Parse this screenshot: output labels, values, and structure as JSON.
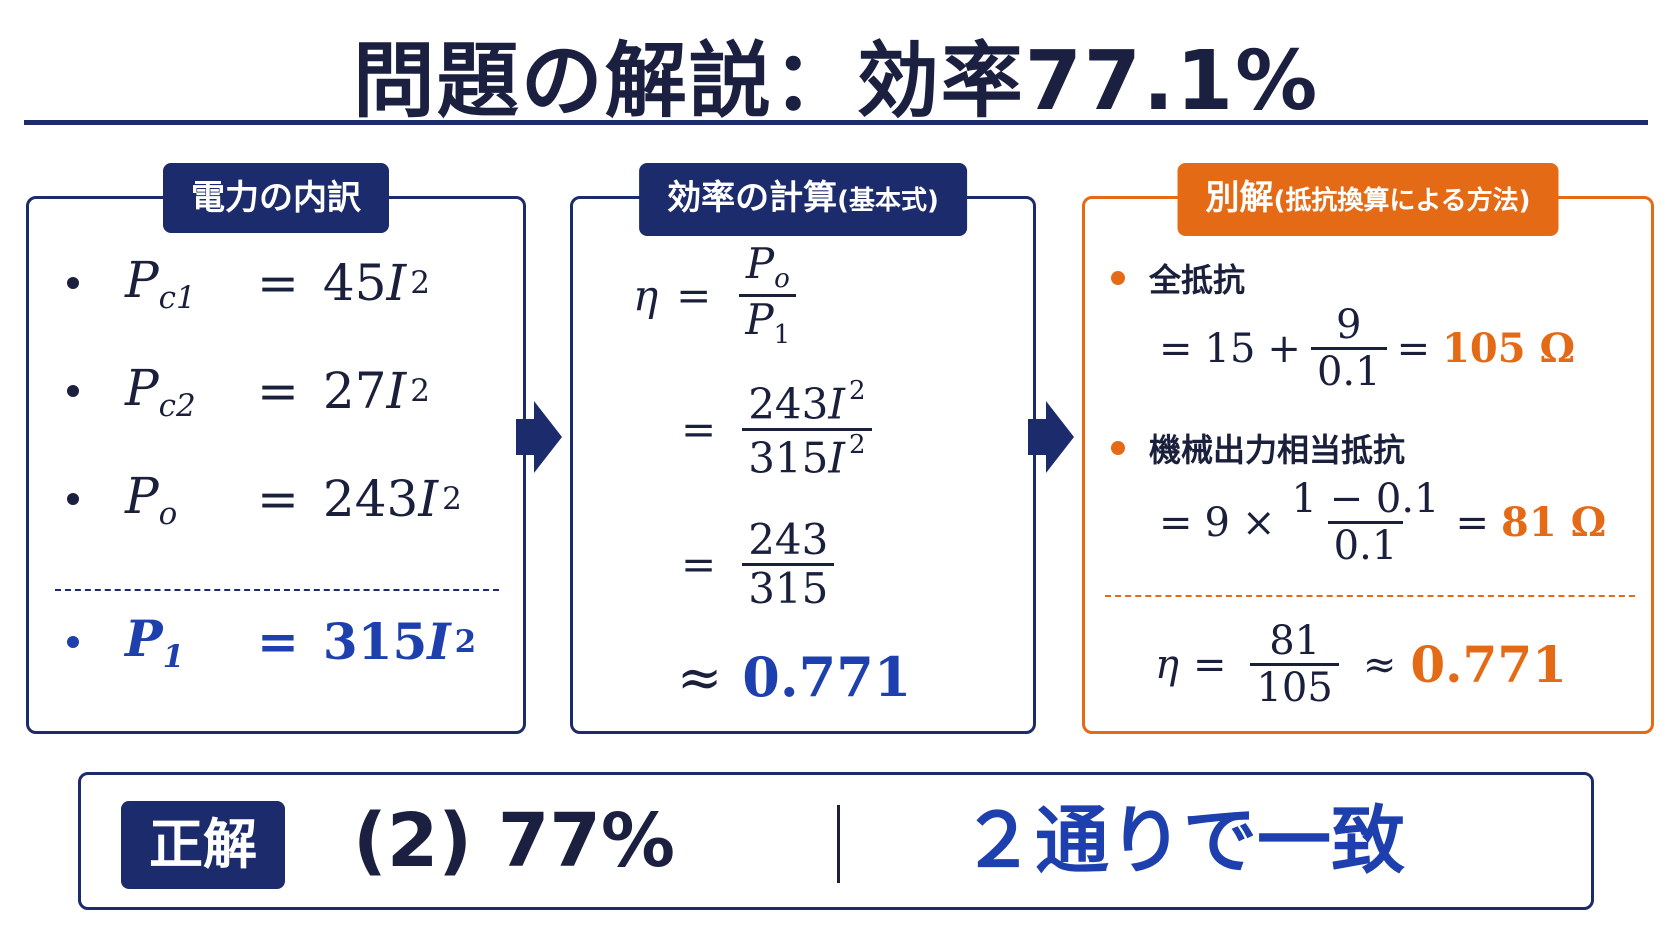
{
  "title": "問題の解説：効率77.1%",
  "panels": {
    "breakdown": {
      "label": "電力の内訳",
      "items": [
        {
          "sym": "P",
          "sub": "c1",
          "coef": "45",
          "var": "I",
          "pow": "2"
        },
        {
          "sym": "P",
          "sub": "c2",
          "coef": "27",
          "var": "I",
          "pow": "2"
        },
        {
          "sym": "P",
          "sub": "o",
          "coef": "243",
          "var": "I",
          "pow": "2"
        }
      ],
      "total": {
        "sym": "P",
        "sub": "1",
        "coef": "315",
        "var": "I",
        "pow": "2"
      }
    },
    "calc": {
      "label_main": "効率の計算",
      "label_sub": "(基本式)",
      "eta": "η",
      "eq": "=",
      "approx": "≈",
      "f1_num_sym": "P",
      "f1_num_sub": "o",
      "f1_den_sym": "P",
      "f1_den_sub": "1",
      "f2_num": "243",
      "f2_den": "315",
      "f2_var": "I",
      "f2_pow": "2",
      "f3_num": "243",
      "f3_den": "315",
      "result": "0.771"
    },
    "alt": {
      "label_main": "別解",
      "label_sub": "(抵抗換算による方法)",
      "item1_title": "全抵抗",
      "item1_a": "15",
      "item1_plus": "+",
      "item1_num": "9",
      "item1_den": "0.1",
      "item1_result": "105 Ω",
      "item2_title": "機械出力相当抵抗",
      "item2_a": "9",
      "item2_times": "×",
      "item2_num": "1 − 0.1",
      "item2_den": "0.1",
      "item2_result": "81 Ω",
      "final_num": "81",
      "final_den": "105",
      "final_result": "0.771"
    }
  },
  "answer": {
    "badge": "正解",
    "text": "(2) 77%",
    "note": "２通りで一致"
  },
  "colors": {
    "navy": "#1b2b6b",
    "blue": "#1e3fae",
    "orange": "#e56a16"
  }
}
